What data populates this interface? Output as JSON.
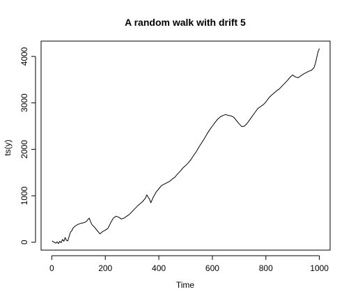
{
  "chart_data": {
    "type": "line",
    "title": "A random walk with drift 5",
    "xlabel": "Time",
    "ylabel": "ts(y)",
    "xlim": [
      -40,
      1040
    ],
    "ylim": [
      -170,
      4330
    ],
    "x_ticks": [
      0,
      200,
      400,
      600,
      800,
      1000
    ],
    "y_ticks": [
      0,
      1000,
      2000,
      3000,
      4000
    ],
    "grid": false,
    "legend": "none",
    "series": [
      {
        "x": [
          1,
          5,
          10,
          15,
          20,
          25,
          30,
          35,
          40,
          45,
          50,
          55,
          60,
          65,
          70,
          75,
          80,
          90,
          100,
          110,
          120,
          130,
          135,
          140,
          145,
          150,
          160,
          170,
          180,
          190,
          200,
          210,
          220,
          230,
          240,
          250,
          260,
          270,
          280,
          290,
          300,
          310,
          320,
          330,
          340,
          350,
          355,
          360,
          365,
          370,
          380,
          390,
          400,
          410,
          420,
          430,
          440,
          450,
          460,
          470,
          480,
          490,
          500,
          510,
          520,
          530,
          540,
          550,
          560,
          570,
          580,
          590,
          600,
          610,
          620,
          630,
          640,
          650,
          660,
          670,
          680,
          690,
          700,
          710,
          720,
          730,
          740,
          750,
          760,
          770,
          780,
          790,
          800,
          810,
          820,
          830,
          840,
          850,
          860,
          870,
          880,
          890,
          900,
          910,
          920,
          930,
          940,
          950,
          960,
          970,
          980,
          985,
          990,
          995,
          1000
        ],
        "y": [
          30,
          10,
          0,
          -20,
          10,
          -30,
          20,
          -10,
          60,
          20,
          100,
          40,
          30,
          130,
          220,
          250,
          310,
          360,
          390,
          410,
          420,
          450,
          490,
          520,
          440,
          380,
          320,
          250,
          180,
          230,
          260,
          300,
          420,
          520,
          560,
          540,
          500,
          520,
          560,
          600,
          660,
          720,
          780,
          830,
          880,
          950,
          1020,
          970,
          930,
          850,
          980,
          1080,
          1150,
          1220,
          1250,
          1280,
          1310,
          1360,
          1400,
          1470,
          1530,
          1600,
          1650,
          1710,
          1780,
          1870,
          1950,
          2050,
          2140,
          2230,
          2330,
          2420,
          2500,
          2580,
          2650,
          2700,
          2730,
          2750,
          2730,
          2720,
          2690,
          2620,
          2550,
          2490,
          2500,
          2560,
          2640,
          2720,
          2800,
          2880,
          2920,
          2960,
          3020,
          3100,
          3160,
          3210,
          3260,
          3300,
          3360,
          3420,
          3480,
          3550,
          3600,
          3560,
          3540,
          3580,
          3620,
          3650,
          3680,
          3700,
          3760,
          3850,
          3980,
          4100,
          4170
        ]
      }
    ]
  }
}
